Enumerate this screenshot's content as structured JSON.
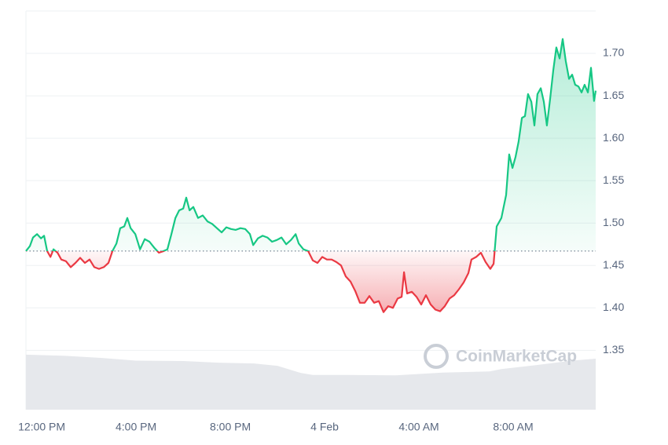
{
  "chart_data": {
    "type": "line",
    "watermark": "CoinMarketCap",
    "x": [
      -0.67,
      -0.5,
      -0.37,
      -0.2,
      -0.03,
      0.1,
      0.23,
      0.37,
      0.5,
      0.67,
      0.83,
      1.03,
      1.23,
      1.43,
      1.63,
      1.83,
      2.03,
      2.23,
      2.43,
      2.63,
      2.83,
      3,
      3.17,
      3.33,
      3.5,
      3.63,
      3.77,
      3.97,
      4.17,
      4.37,
      4.57,
      4.77,
      4.97,
      5.17,
      5.33,
      5.5,
      5.67,
      5.83,
      6,
      6.13,
      6.27,
      6.43,
      6.63,
      6.83,
      7.03,
      7.23,
      7.43,
      7.63,
      7.83,
      8.03,
      8.23,
      8.43,
      8.63,
      8.83,
      8.97,
      9.17,
      9.37,
      9.57,
      9.77,
      9.97,
      10.17,
      10.37,
      10.57,
      10.77,
      10.9,
      11.1,
      11.3,
      11.5,
      11.7,
      11.9,
      12.1,
      12.3,
      12.5,
      12.7,
      12.9,
      13.1,
      13.3,
      13.5,
      13.7,
      13.9,
      14.1,
      14.3,
      14.5,
      14.7,
      14.9,
      15.1,
      15.27,
      15.37,
      15.5,
      15.7,
      15.9,
      16.1,
      16.3,
      16.5,
      16.7,
      16.9,
      17.1,
      17.3,
      17.5,
      17.7,
      17.9,
      18.1,
      18.23,
      18.43,
      18.63,
      18.83,
      19.03,
      19.17,
      19.3,
      19.5,
      19.7,
      19.83,
      19.97,
      20.1,
      20.23,
      20.37,
      20.5,
      20.63,
      20.77,
      20.9,
      21.03,
      21.17,
      21.3,
      21.43,
      21.57,
      21.7,
      21.83,
      21.97,
      22.1,
      22.23,
      22.37,
      22.5,
      22.63,
      22.77,
      22.9,
      23.03,
      23.17,
      23.3,
      23.43,
      23.5
    ],
    "values": [
      1.467,
      1.473,
      1.483,
      1.487,
      1.482,
      1.485,
      1.467,
      1.46,
      1.469,
      1.465,
      1.457,
      1.455,
      1.448,
      1.453,
      1.459,
      1.453,
      1.457,
      1.448,
      1.446,
      1.448,
      1.453,
      1.467,
      1.476,
      1.494,
      1.496,
      1.506,
      1.494,
      1.487,
      1.469,
      1.481,
      1.478,
      1.471,
      1.465,
      1.467,
      1.469,
      1.487,
      1.506,
      1.515,
      1.517,
      1.53,
      1.515,
      1.519,
      1.506,
      1.509,
      1.502,
      1.499,
      1.494,
      1.489,
      1.495,
      1.493,
      1.492,
      1.494,
      1.493,
      1.487,
      1.474,
      1.482,
      1.485,
      1.483,
      1.478,
      1.48,
      1.483,
      1.475,
      1.48,
      1.487,
      1.476,
      1.469,
      1.467,
      1.456,
      1.453,
      1.46,
      1.457,
      1.457,
      1.454,
      1.45,
      1.437,
      1.431,
      1.42,
      1.406,
      1.406,
      1.414,
      1.406,
      1.408,
      1.395,
      1.402,
      1.4,
      1.411,
      1.413,
      1.442,
      1.417,
      1.419,
      1.413,
      1.404,
      1.415,
      1.404,
      1.398,
      1.396,
      1.402,
      1.411,
      1.415,
      1.422,
      1.43,
      1.441,
      1.457,
      1.46,
      1.465,
      1.454,
      1.446,
      1.452,
      1.496,
      1.506,
      1.533,
      1.581,
      1.565,
      1.578,
      1.596,
      1.624,
      1.626,
      1.652,
      1.643,
      1.615,
      1.652,
      1.659,
      1.643,
      1.615,
      1.647,
      1.68,
      1.707,
      1.694,
      1.717,
      1.691,
      1.67,
      1.675,
      1.663,
      1.661,
      1.654,
      1.663,
      1.654,
      1.683,
      1.644,
      1.656
    ],
    "baseline": 1.467,
    "color_up": "#16c784",
    "color_down": "#ea3943",
    "volume": {
      "axis": "y2",
      "color": "#e6e8ec",
      "x": [
        -0.67,
        1,
        2.5,
        4,
        6,
        7.5,
        9,
        10,
        11,
        11.5,
        13,
        15,
        17,
        19,
        19.5,
        21,
        22.5,
        23.5
      ],
      "values": [
        13.8,
        13.5,
        13.0,
        12.3,
        12.2,
        11.8,
        11.6,
        11.0,
        9.2,
        8.7,
        8.7,
        8.6,
        9.3,
        9.6,
        10.2,
        11.2,
        12.3,
        12.8
      ]
    },
    "xlim": [
      -0.67,
      23.5
    ],
    "xticks": [
      {
        "value": 0,
        "label": "12:00 PM"
      },
      {
        "value": 4,
        "label": "4:00 PM"
      },
      {
        "value": 8,
        "label": "8:00 PM"
      },
      {
        "value": 12,
        "label": "4 Feb"
      },
      {
        "value": 16,
        "label": "4:00 AM"
      },
      {
        "value": 20,
        "label": "8:00 AM"
      }
    ],
    "ylim": [
      1.28,
      1.75
    ],
    "yticks": [
      1.35,
      {
        "value": 1.4,
        "label": "1.40"
      },
      1.45,
      {
        "value": 1.5,
        "label": "1.50"
      },
      1.55,
      {
        "value": 1.6,
        "label": "1.60"
      },
      1.65,
      {
        "value": 1.7,
        "label": "1.70"
      }
    ],
    "y2lim": [
      0,
      100
    ],
    "grid": true
  }
}
